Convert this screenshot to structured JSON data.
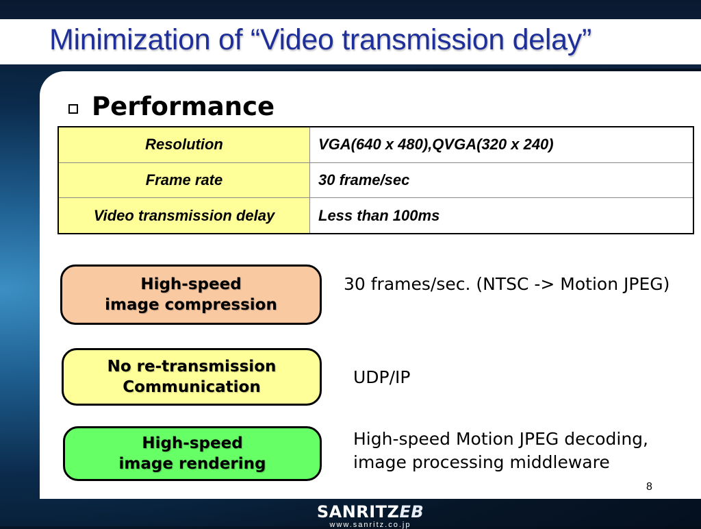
{
  "slide": {
    "title": "Minimization of “Video transmission delay”",
    "page_number": "8"
  },
  "section": {
    "heading": "Performance"
  },
  "performance_table": [
    {
      "label": "Resolution",
      "value": "VGA(640 x 480),QVGA(320 x 240)"
    },
    {
      "label": "Frame rate",
      "value": "30 frame/sec"
    },
    {
      "label": "Video transmission delay",
      "value": "Less than 100ms"
    }
  ],
  "features": [
    {
      "line1": "High-speed",
      "line2": "image compression",
      "color": "#f9c9a2",
      "description": "30 frames/sec. (NTSC -> Motion JPEG)"
    },
    {
      "line1": "No re-transmission",
      "line2": "Communication",
      "color": "#ffff99",
      "description": "UDP/IP"
    },
    {
      "line1": "High-speed",
      "line2": "image rendering",
      "color": "#66ff66",
      "description": "High-speed Motion JPEG decoding, image processing middleware"
    }
  ],
  "logo": {
    "brand_main": "SANRITZ",
    "brand_suffix": "EB",
    "url": "www.sanritz.co.jp"
  },
  "colors": {
    "title_text": "#1f2f99",
    "table_label_bg": "#ffff99"
  }
}
